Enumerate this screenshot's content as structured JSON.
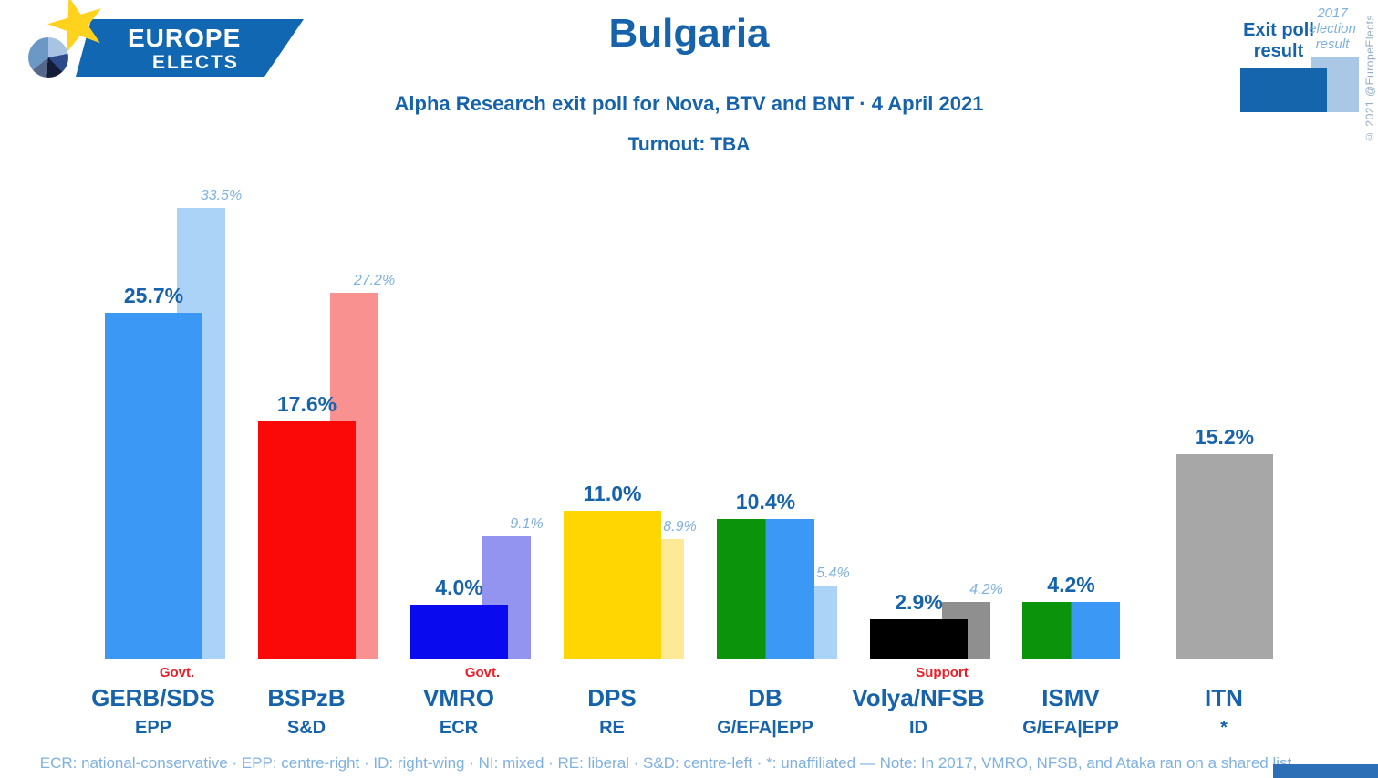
{
  "logo": {
    "line1": "EUROPE",
    "line2": "ELECTS"
  },
  "title": "Bulgaria",
  "subtitle": "Alpha Research exit poll for Nova, BTV and BNT · 4 April 2021",
  "turnout": "Turnout: TBA",
  "legend": {
    "exit": "Exit poll result",
    "previous": "2017 election result"
  },
  "copyright": "© 2021 @EuropeElects",
  "footer": "ECR: national-conservative · EPP: centre-right · ID: right-wing · NI: mixed · RE: liberal · S&D: centre-left · *: unaffiliated — Note: In 2017, VMRO, NFSB, and Ataka ran on a shared list",
  "colors": {
    "dark_blue_text": "#1663ac",
    "light_blue_text": "#7fb0e2",
    "note_red": "#ee1c25",
    "legend_exit_swatch": "#1465ac",
    "legend_previous_swatch": "#aac7e6",
    "logo_band": "#1167b1",
    "logo_star": "#ffd21e",
    "accent_bar": "#2d6fb7"
  },
  "chart_data": {
    "type": "bar",
    "title": "Bulgaria",
    "subtitle": "Alpha Research exit poll for Nova, BTV and BNT · 4 April 2021",
    "unit": "%",
    "grid": false,
    "legend_position": "top-right",
    "ylim": [
      0,
      35
    ],
    "categories": [
      "GERB/SDS",
      "BSPzB",
      "VMRO",
      "DPS",
      "DB",
      "Volya/NFSB",
      "ISMV",
      "ITN"
    ],
    "series": [
      {
        "name": "Exit poll result",
        "values": [
          25.7,
          17.6,
          4.0,
          11.0,
          10.4,
          2.9,
          4.2,
          15.2
        ]
      },
      {
        "name": "2017 election result",
        "values": [
          33.5,
          27.2,
          9.1,
          8.9,
          5.4,
          4.2,
          null,
          null
        ]
      }
    ],
    "bars": [
      {
        "party": "GERB/SDS",
        "group": "EPP",
        "note": "Govt.",
        "exit": 25.7,
        "exit_label": "25.7%",
        "prev": 33.5,
        "prev_label": "33.5%",
        "color": "#3b99f5",
        "color2": null,
        "prev_color": "#abd2f7"
      },
      {
        "party": "BSPzB",
        "group": "S&D",
        "note": null,
        "exit": 17.6,
        "exit_label": "17.6%",
        "prev": 27.2,
        "prev_label": "27.2%",
        "color": "#fb0909",
        "color2": null,
        "prev_color": "#f99191"
      },
      {
        "party": "VMRO",
        "group": "ECR",
        "note": "Govt.",
        "exit": 4.0,
        "exit_label": "4.0%",
        "prev": 9.1,
        "prev_label": "9.1%",
        "color": "#0a0aee",
        "color2": null,
        "prev_color": "#9393f0"
      },
      {
        "party": "DPS",
        "group": "RE",
        "note": null,
        "exit": 11.0,
        "exit_label": "11.0%",
        "prev": 8.9,
        "prev_label": "8.9%",
        "color": "#ffd601",
        "color2": null,
        "prev_color": "#ffe997"
      },
      {
        "party": "DB",
        "group": "G/EFA|EPP",
        "note": null,
        "exit": 10.4,
        "exit_label": "10.4%",
        "prev": 5.4,
        "prev_label": "5.4%",
        "color": "#0b930b",
        "color2": "#3b99f5",
        "prev_color": "#abd2f7"
      },
      {
        "party": "Volya/NFSB",
        "group": "ID",
        "note": "Support",
        "exit": 2.9,
        "exit_label": "2.9%",
        "prev": 4.2,
        "prev_label": "4.2%",
        "color": "#000000",
        "color2": null,
        "prev_color": "#8f8f8f"
      },
      {
        "party": "ISMV",
        "group": "G/EFA|EPP",
        "note": null,
        "exit": 4.2,
        "exit_label": "4.2%",
        "prev": null,
        "prev_label": null,
        "color": "#0b930b",
        "color2": "#3b99f5",
        "prev_color": null
      },
      {
        "party": "ITN",
        "group": "*",
        "note": null,
        "exit": 15.2,
        "exit_label": "15.2%",
        "prev": null,
        "prev_label": null,
        "color": "#a7a7a7",
        "color2": null,
        "prev_color": null
      }
    ]
  }
}
